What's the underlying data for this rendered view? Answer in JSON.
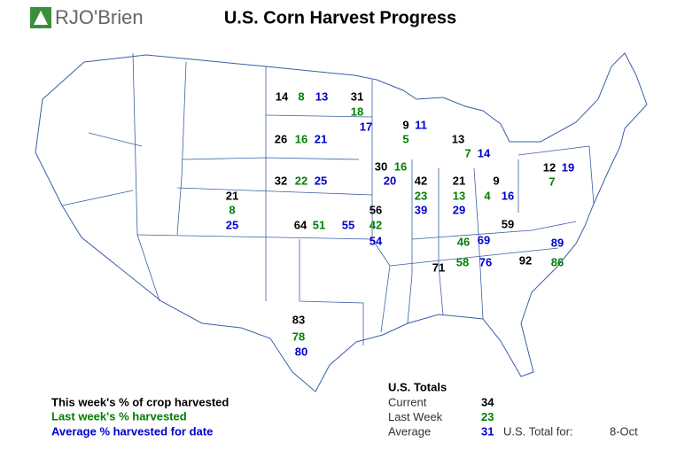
{
  "logo": "RJO'Brien",
  "title": "U.S. Corn Harvest Progress",
  "states": [
    {
      "this_week": 14,
      "last_week": 8,
      "average": 13
    },
    {
      "this_week": 31,
      "last_week": 18,
      "average": 17
    },
    {
      "this_week": 26,
      "last_week": 16,
      "average": 21
    },
    {
      "this_week": 9,
      "last_week": 5,
      "average": 11
    },
    {
      "this_week": 13,
      "last_week": 7,
      "average": 14
    },
    {
      "this_week": 32,
      "last_week": 22,
      "average": 25
    },
    {
      "this_week": 30,
      "last_week": 16,
      "average": 20
    },
    {
      "this_week": 21,
      "last_week": 8,
      "average": 25
    },
    {
      "this_week": 64,
      "last_week": 51,
      "average": 55
    },
    {
      "this_week": 56,
      "last_week": 42,
      "average": 54
    },
    {
      "this_week": 42,
      "last_week": 23,
      "average": 39
    },
    {
      "this_week": 21,
      "last_week": 13,
      "average": 29
    },
    {
      "this_week": 9,
      "last_week": 4,
      "average": 16
    },
    {
      "this_week": 12,
      "last_week": 7,
      "average": 19
    },
    {
      "this_week": 59,
      "last_week": 46,
      "average": 69
    },
    {
      "this_week": 71,
      "last_week": 58,
      "average": 76
    },
    {
      "this_week": 92,
      "last_week": 86,
      "average": 89
    },
    {
      "this_week": 83,
      "last_week": 78,
      "average": 80
    }
  ],
  "legend": {
    "this_week": "This week's % of crop harvested",
    "last_week": "Last week's % harvested",
    "average": "Average % harvested for date"
  },
  "totals": {
    "title": "U.S. Totals",
    "rows": [
      {
        "label": "Current",
        "value": 34
      },
      {
        "label": "Last Week",
        "value": 23
      },
      {
        "label": "Average",
        "value": 31
      }
    ],
    "date_label": "U.S. Total for:",
    "date": "8-Oct"
  }
}
